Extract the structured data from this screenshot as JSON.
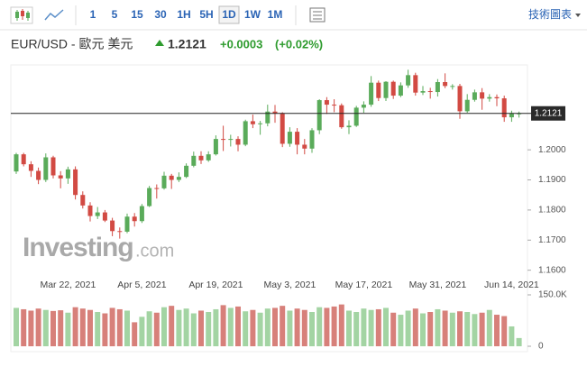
{
  "toolbar": {
    "intervals": [
      "1",
      "5",
      "15",
      "30",
      "1H",
      "5H",
      "1D",
      "1W",
      "1M"
    ],
    "active": "1D",
    "chart_button": "技術圖表"
  },
  "chart_data": {
    "type": "candlestick",
    "symbol": "EUR/USD - 歐元 美元",
    "last": 1.2121,
    "change": {
      "value": 0.0003,
      "label": "+0.0003"
    },
    "change_pct": {
      "value": 0.02,
      "label": "(+0.02%)"
    },
    "watermark": {
      "brand": "Investing",
      "suffix": ".com"
    },
    "categories": [
      null,
      null,
      null,
      null,
      null,
      null,
      null,
      "Mar 22, 2021",
      null,
      null,
      null,
      null,
      null,
      null,
      null,
      null,
      null,
      "Apr 5, 2021",
      null,
      null,
      null,
      null,
      null,
      null,
      null,
      null,
      null,
      "Apr 19, 2021",
      null,
      null,
      null,
      null,
      null,
      null,
      null,
      null,
      null,
      "May 3, 2021",
      null,
      null,
      null,
      null,
      null,
      null,
      null,
      null,
      null,
      "May 17, 2021",
      null,
      null,
      null,
      null,
      null,
      null,
      null,
      null,
      null,
      "May 31, 2021",
      null,
      null,
      null,
      null,
      null,
      null,
      null,
      null,
      null,
      "Jun 14, 2021",
      null
    ],
    "open": [
      1.1928,
      1.1985,
      1.1952,
      1.193,
      1.19,
      1.1975,
      1.1915,
      1.1905,
      1.1935,
      1.185,
      1.1815,
      1.178,
      1.1792,
      1.1765,
      1.173,
      1.1728,
      1.1778,
      1.1763,
      1.1813,
      1.1873,
      1.1872,
      1.1914,
      1.19,
      1.191,
      1.1947,
      1.198,
      1.1965,
      1.1985,
      1.2036,
      1.2035,
      1.2036,
      1.2017,
      1.2095,
      1.2085,
      1.2088,
      1.2127,
      1.212,
      1.202,
      1.206,
      1.2017,
      1.2004,
      1.2065,
      1.2165,
      1.215,
      1.2148,
      1.2075,
      1.208,
      1.214,
      1.215,
      1.2223,
      1.2172,
      1.2226,
      1.218,
      1.2214,
      1.2248,
      1.219,
      1.2195,
      1.2192,
      1.2225,
      1.2212,
      1.2212,
      1.2128,
      1.2166,
      1.2191,
      1.217,
      1.2175,
      1.2171,
      1.2108,
      1.212
    ],
    "high": [
      1.199,
      1.199,
      1.1962,
      1.1941,
      1.1988,
      1.198,
      1.1929,
      1.1944,
      1.1945,
      1.1862,
      1.1826,
      1.181,
      1.18,
      1.1774,
      1.1742,
      1.1788,
      1.179,
      1.182,
      1.188,
      1.1885,
      1.1927,
      1.192,
      1.1925,
      1.1955,
      1.1994,
      1.1995,
      1.1995,
      1.2048,
      1.208,
      1.205,
      1.2045,
      1.21,
      1.2117,
      1.2096,
      1.215,
      1.2149,
      1.2125,
      1.2075,
      1.2072,
      1.2036,
      1.2072,
      1.2168,
      1.2175,
      1.2168,
      1.2154,
      1.2098,
      1.2146,
      1.2161,
      1.2245,
      1.223,
      1.2228,
      1.223,
      1.2224,
      1.2266,
      1.2256,
      1.2212,
      1.2206,
      1.2235,
      1.2254,
      1.2218,
      1.2219,
      1.2185,
      1.22,
      1.2205,
      1.2185,
      1.2184,
      1.218,
      1.213,
      1.2127
    ],
    "low": [
      1.192,
      1.1945,
      1.191,
      1.1886,
      1.1893,
      1.1905,
      1.1872,
      1.1887,
      1.1835,
      1.1805,
      1.1762,
      1.177,
      1.176,
      1.1713,
      1.1705,
      1.1723,
      1.1745,
      1.1757,
      1.181,
      1.1838,
      1.1868,
      1.187,
      1.1893,
      1.1906,
      1.1942,
      1.1953,
      1.196,
      1.1981,
      1.1996,
      1.2011,
      1.1995,
      1.2012,
      1.2072,
      1.205,
      1.2078,
      1.209,
      1.2009,
      1.201,
      1.1985,
      1.1985,
      1.199,
      1.2052,
      1.2119,
      1.2125,
      1.207,
      1.2052,
      1.2076,
      1.2123,
      1.2143,
      1.2162,
      1.2162,
      1.2169,
      1.2175,
      1.2206,
      1.218,
      1.2182,
      1.217,
      1.2177,
      1.2205,
      1.22,
      1.2103,
      1.2123,
      1.216,
      1.2133,
      1.216,
      1.2145,
      1.2093,
      1.2093,
      1.2107
    ],
    "close": [
      1.1985,
      1.1952,
      1.193,
      1.19,
      1.1975,
      1.1915,
      1.1905,
      1.1935,
      1.185,
      1.1815,
      1.178,
      1.1792,
      1.1765,
      1.173,
      1.1728,
      1.1778,
      1.1763,
      1.1813,
      1.1873,
      1.1872,
      1.1914,
      1.19,
      1.191,
      1.1947,
      1.198,
      1.1965,
      1.1985,
      1.2036,
      1.2035,
      1.2036,
      1.2017,
      1.2095,
      1.2085,
      1.2088,
      1.2127,
      1.212,
      1.202,
      1.206,
      1.2017,
      1.2004,
      1.2065,
      1.2165,
      1.215,
      1.2148,
      1.2075,
      1.208,
      1.214,
      1.215,
      1.2223,
      1.2172,
      1.2226,
      1.218,
      1.2214,
      1.2248,
      1.219,
      1.2195,
      1.2192,
      1.2225,
      1.2212,
      1.2212,
      1.2128,
      1.2166,
      1.2191,
      1.217,
      1.2175,
      1.2171,
      1.2108,
      1.212,
      1.2121
    ],
    "volume": [
      112000,
      108000,
      104000,
      110000,
      106000,
      103000,
      105000,
      98000,
      114000,
      110000,
      106000,
      100000,
      96000,
      112000,
      108000,
      104000,
      70000,
      86000,
      102000,
      98000,
      114000,
      118000,
      106000,
      110000,
      96000,
      104000,
      100000,
      108000,
      120000,
      112000,
      116000,
      102000,
      106000,
      98000,
      110000,
      112000,
      118000,
      104000,
      110000,
      106000,
      100000,
      114000,
      112000,
      116000,
      122000,
      104000,
      100000,
      110000,
      106000,
      108000,
      112000,
      98000,
      92000,
      104000,
      110000,
      96000,
      100000,
      108000,
      104000,
      98000,
      102000,
      100000,
      94000,
      98000,
      106000,
      92000,
      88000,
      58000,
      24000
    ],
    "colors": {
      "up": "#5aab5a",
      "down": "#d24a43",
      "volume_up": "#a3d4a3",
      "volume_down": "#d7807a"
    },
    "ylim": [
      1.159,
      1.227
    ],
    "yticks": [
      {
        "value": 1.16,
        "label": "1.1600"
      },
      {
        "value": 1.17,
        "label": "1.1700"
      },
      {
        "value": 1.18,
        "label": "1.1800"
      },
      {
        "value": 1.19,
        "label": "1.1900"
      },
      {
        "value": 1.2,
        "label": "1.2000"
      }
    ],
    "volume_ylim": [
      0,
      150000
    ],
    "volume_yticks": [
      {
        "value": 150000,
        "label": "150.0K"
      },
      0
    ]
  }
}
